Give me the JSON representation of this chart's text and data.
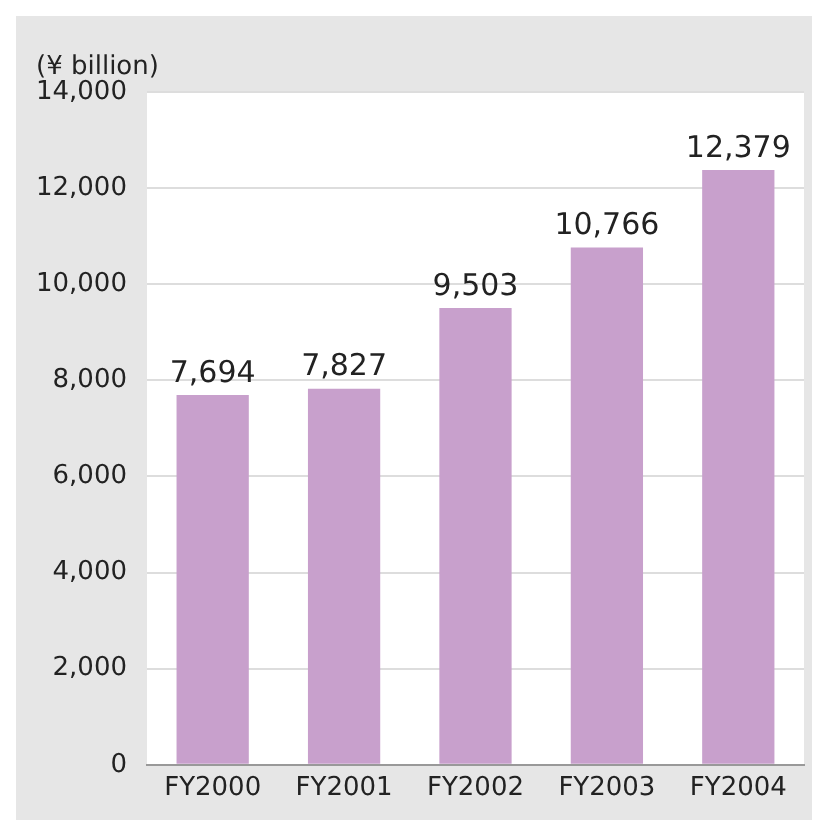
{
  "chart_data": {
    "type": "bar",
    "ylabel": "(¥ billion)",
    "categories": [
      "FY2000",
      "FY2001",
      "FY2002",
      "FY2003",
      "FY2004"
    ],
    "values": [
      7694,
      7827,
      9503,
      10766,
      12379
    ],
    "color": "#c8a0cc",
    "value_labels": [
      "7,694",
      "7,827",
      "9,503",
      "10,766",
      "12,379"
    ],
    "ylim": [
      0,
      14000
    ],
    "yticks": [
      0,
      {
        "value": 2000,
        "label": "2,000"
      },
      {
        "value": 4000,
        "label": "4,000"
      },
      {
        "value": 6000,
        "label": "6,000"
      },
      {
        "value": 8000,
        "label": "8,000"
      },
      {
        "value": 10000,
        "label": "10,000"
      },
      {
        "value": 12000,
        "label": "12,000"
      },
      {
        "value": 14000,
        "label": "14,000"
      }
    ],
    "grid": "y"
  }
}
